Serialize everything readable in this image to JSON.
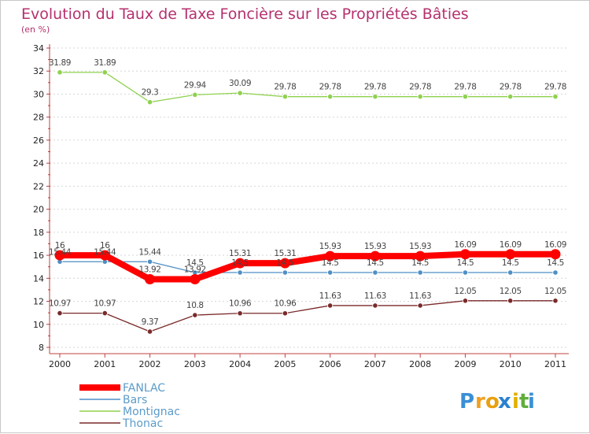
{
  "chart_data": {
    "type": "line",
    "title": "Evolution du Taux de Taxe Foncière sur les Propriétés Bâties",
    "subtitle": "(en %)",
    "xlabel": "",
    "ylabel": "",
    "x": [
      "2000",
      "2001",
      "2002",
      "2003",
      "2004",
      "2005",
      "2006",
      "2007",
      "2008",
      "2009",
      "2010",
      "2011"
    ],
    "ylim": [
      8,
      34
    ],
    "yticks": [
      "8",
      "10",
      "12",
      "14",
      "16",
      "18",
      "20",
      "22",
      "24",
      "26",
      "28",
      "30",
      "32",
      "34"
    ],
    "grid": "horizontal dashed",
    "legend_position": "bottom-left",
    "series": [
      {
        "name": "FANLAC",
        "color": "#ff0000",
        "emphasis": true,
        "values": [
          16,
          16,
          13.92,
          13.92,
          15.31,
          15.31,
          15.93,
          15.93,
          15.93,
          16.09,
          16.09,
          16.09
        ],
        "labels": [
          "16",
          "16",
          "13.92",
          "13.92",
          "15.31",
          "15.31",
          "15.93",
          "15.93",
          "15.93",
          "16.09",
          "16.09",
          "16.09"
        ]
      },
      {
        "name": "Bars",
        "color": "#4f8fc5",
        "emphasis": false,
        "values": [
          15.44,
          15.44,
          15.44,
          14.5,
          14.5,
          14.5,
          14.5,
          14.5,
          14.5,
          14.5,
          14.5,
          14.5
        ],
        "labels": [
          "15.44",
          "15.44",
          "15.44",
          "14.5",
          "14.5",
          "14.5",
          "14.5",
          "14.5",
          "14.5",
          "14.5",
          "14.5",
          "14.5"
        ]
      },
      {
        "name": "Montignac",
        "color": "#8fd14f",
        "emphasis": false,
        "values": [
          31.89,
          31.89,
          29.3,
          29.94,
          30.09,
          29.78,
          29.78,
          29.78,
          29.78,
          29.78,
          29.78,
          29.78
        ],
        "labels": [
          "31.89",
          "31.89",
          "29.3",
          "29.94",
          "30.09",
          "29.78",
          "29.78",
          "29.78",
          "29.78",
          "29.78",
          "29.78",
          "29.78"
        ]
      },
      {
        "name": "Thonac",
        "color": "#7a2a2a",
        "emphasis": false,
        "values": [
          10.97,
          10.97,
          9.37,
          10.8,
          10.96,
          10.96,
          11.63,
          11.63,
          11.63,
          12.05,
          12.05,
          12.05
        ],
        "labels": [
          "10.97",
          "10.97",
          "9.37",
          "10.8",
          "10.96",
          "10.96",
          "11.63",
          "11.63",
          "11.63",
          "12.05",
          "12.05",
          "12.05"
        ]
      }
    ]
  },
  "branding": {
    "logo_letters": [
      "P",
      "r",
      "o",
      "x",
      "i",
      "t",
      "i"
    ],
    "logo_colors": [
      "#3a8fd6",
      "#f0a020",
      "#e8a010",
      "#2a80d0",
      "#e0b000",
      "#5fae3a",
      "#3a8fd6"
    ]
  }
}
